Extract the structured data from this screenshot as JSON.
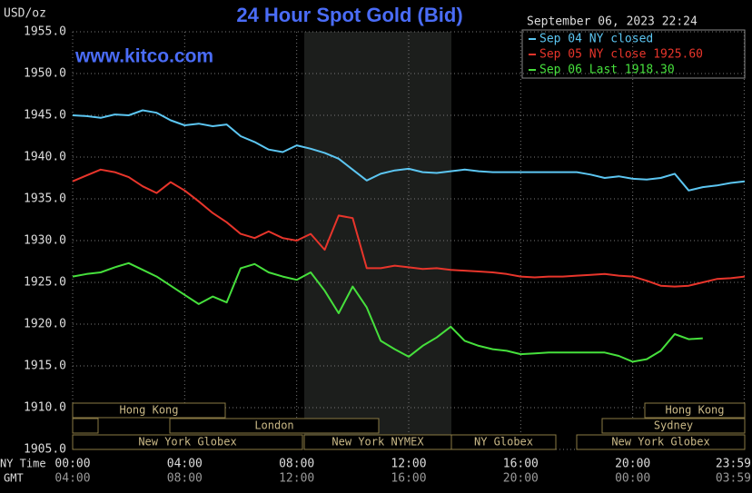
{
  "chart_data": {
    "type": "line",
    "title": "24 Hour Spot Gold (Bid)",
    "subtitle": "September 06, 2023 22:24",
    "y_unit": "USD/oz",
    "watermark": "www.kitco.com",
    "x_axis_label": "NY Time",
    "x2_axis_label": "GMT",
    "x": [
      0,
      0.5,
      1,
      1.5,
      2,
      2.5,
      3,
      3.5,
      4,
      4.5,
      5,
      5.5,
      6,
      6.5,
      7,
      7.5,
      8,
      8.5,
      9,
      9.5,
      10,
      10.5,
      11,
      11.5,
      12,
      12.5,
      13,
      13.5,
      14,
      14.5,
      15,
      15.5,
      16,
      16.5,
      17,
      17.5,
      18,
      18.5,
      19,
      19.5,
      20,
      20.5,
      21,
      21.5,
      22,
      22.5,
      23,
      23.5,
      24
    ],
    "series": [
      {
        "name": "Sep 04 NY closed",
        "color": "#5cc6f2",
        "values": [
          1945.0,
          1944.9,
          1944.7,
          1945.1,
          1945.0,
          1945.6,
          1945.3,
          1944.4,
          1943.8,
          1944.0,
          1943.7,
          1943.9,
          1942.5,
          1941.8,
          1940.9,
          1940.6,
          1941.4,
          1941.0,
          1940.5,
          1939.8,
          1938.5,
          1937.2,
          1938.0,
          1938.4,
          1938.6,
          1938.2,
          1938.1,
          1938.3,
          1938.5,
          1938.3,
          1938.2,
          1938.2,
          1938.2,
          1938.2,
          1938.2,
          1938.2,
          1938.2,
          1937.9,
          1937.5,
          1937.7,
          1937.4,
          1937.3,
          1937.5,
          1938.0,
          1936.0,
          1936.4,
          1936.6,
          1936.9,
          1937.1
        ]
      },
      {
        "name": "Sep 05 NY close 1925.60",
        "color": "#e8352b",
        "values": [
          1937.1,
          1937.8,
          1938.5,
          1938.2,
          1937.6,
          1936.5,
          1935.7,
          1937.0,
          1936.0,
          1934.7,
          1933.3,
          1932.2,
          1930.8,
          1930.3,
          1931.1,
          1930.3,
          1930.0,
          1930.8,
          1928.9,
          1933.0,
          1932.7,
          1926.7,
          1926.7,
          1927.0,
          1926.8,
          1926.6,
          1926.7,
          1926.5,
          1926.4,
          1926.3,
          1926.2,
          1926.0,
          1925.7,
          1925.6,
          1925.7,
          1925.7,
          1925.8,
          1925.9,
          1926.0,
          1925.8,
          1925.7,
          1925.2,
          1924.6,
          1924.5,
          1924.6,
          1925.0,
          1925.4,
          1925.5,
          1925.7
        ]
      },
      {
        "name": "Sep 06 Last 1918.30",
        "color": "#46e03c",
        "values": [
          1925.7,
          1926.0,
          1926.2,
          1926.8,
          1927.3,
          1926.5,
          1925.7,
          1924.6,
          1923.5,
          1922.4,
          1923.3,
          1922.6,
          1926.7,
          1927.2,
          1926.2,
          1925.7,
          1925.3,
          1926.2,
          1924.0,
          1921.3,
          1924.5,
          1922.0,
          1918.0,
          1917.0,
          1916.1,
          1917.4,
          1918.4,
          1919.7,
          1918.0,
          1917.4,
          1917.0,
          1916.8,
          1916.4,
          1916.5,
          1916.6,
          1916.6,
          1916.6,
          1916.6,
          1916.6,
          1916.2,
          1915.5,
          1915.8,
          1916.8,
          1918.8,
          1918.2,
          1918.3,
          null,
          null,
          null
        ]
      }
    ],
    "xlim": [
      0,
      24
    ],
    "ylim": [
      1905,
      1955
    ],
    "xticks": [
      {
        "value": 0,
        "label": "00:00"
      },
      {
        "value": 4,
        "label": "04:00"
      },
      {
        "value": 8,
        "label": "08:00"
      },
      {
        "value": 12,
        "label": "12:00"
      },
      {
        "value": 16,
        "label": "16:00"
      },
      {
        "value": 20,
        "label": "20:00"
      },
      {
        "value": 23.98,
        "label": "23:59"
      }
    ],
    "x2tick_labels": [
      "04:00",
      "08:00",
      "12:00",
      "16:00",
      "20:00",
      "00:00",
      "03:59"
    ],
    "yticks": [
      {
        "value": 1905,
        "label": "1905.0"
      },
      {
        "value": 1910,
        "label": "1910.0"
      },
      {
        "value": 1915,
        "label": "1915.0"
      },
      {
        "value": 1920,
        "label": "1920.0"
      },
      {
        "value": 1925,
        "label": "1925.0"
      },
      {
        "value": 1930,
        "label": "1930.0"
      },
      {
        "value": 1935,
        "label": "1935.0"
      },
      {
        "value": 1940,
        "label": "1940.0"
      },
      {
        "value": 1945,
        "label": "1945.0"
      },
      {
        "value": 1950,
        "label": "1950.0"
      },
      {
        "value": 1955,
        "label": "1955.0"
      }
    ],
    "grid": true,
    "sessions": [
      "Hong Kong",
      "London",
      "New York Globex",
      "New York NYMEX",
      "NY Globex",
      "Hong Kong",
      "Sydney",
      "New York Globex"
    ]
  }
}
